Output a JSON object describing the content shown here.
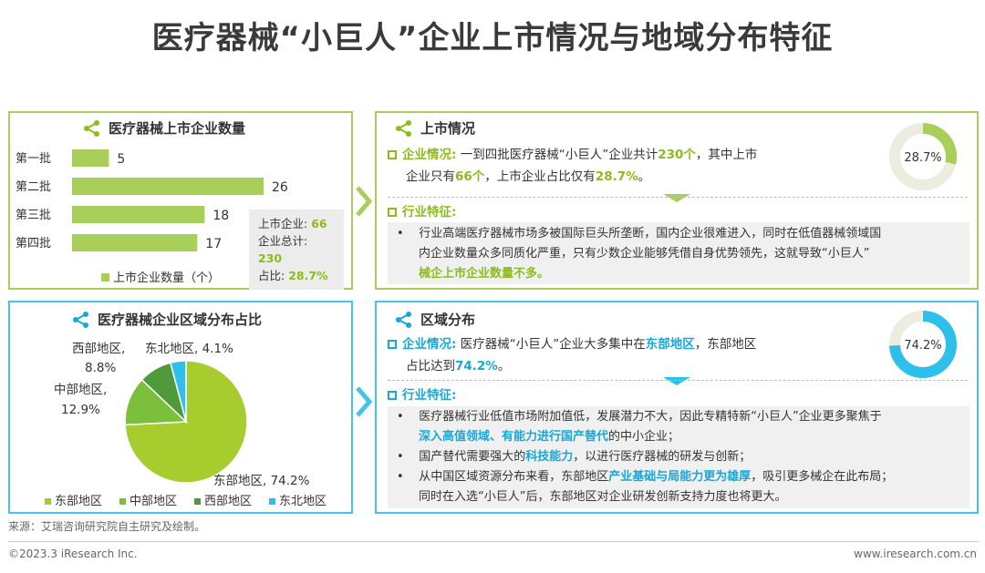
{
  "title": "医疗器械“小巨人”企业上市情况与地域分布特征",
  "panels": {
    "listed": {
      "title": "医疗器械上市企业数量",
      "summary": {
        "listed_label": "上市企业:",
        "listed_value": "66",
        "total_label": "企业总计:",
        "total_value": "230",
        "ratio_label": "占比:",
        "ratio_value": "28.7%"
      },
      "legend": "上市企业数量（个）"
    },
    "region_chart": {
      "title": "医疗器械企业区域分布占比",
      "legend": [
        "东部地区",
        "中部地区",
        "西部地区",
        "东北地区"
      ]
    },
    "listing_status": {
      "title": "上市情况",
      "donut_label": "28.7%",
      "sec1_heading": "企业情况:",
      "sec1_p1": "一到四批医疗器械“小巨人”企业共计",
      "sec1_h1": "230个",
      "sec1_p2": "，其中上市",
      "sec1_p3": "企业只有",
      "sec1_h2": "66个",
      "sec1_p4": "，上市企业占比仅有",
      "sec1_h3": "28.7%",
      "sec1_p5": "。",
      "sec2_heading": "行业特征:",
      "sec2_line1": "行业高端医疗器械市场多被国际巨头所垄断，国内企业很难进入，同时在低值器械领域国",
      "sec2_line2": "内企业数量众多同质化严重，只有少数企业能够凭借自身优势领先，这就导致“小巨人”",
      "sec2_line3": "械企上市企业数量不多。"
    },
    "region_dist": {
      "title": "区域分布",
      "donut_label": "74.2%",
      "sec1_heading": "企业情况:",
      "sec1_p1": "医疗器械“小巨人”企业大多集中在",
      "sec1_h1": "东部地区",
      "sec1_p2": "，东部地区",
      "sec1_p3": "占比达到",
      "sec1_h2": "74.2%",
      "sec1_p4": "。",
      "sec2_heading": "行业特征:",
      "b1_line1": "医疗器械行业低值市场附加值低，发展潜力不大，因此专精特新“小巨人”企业更多聚焦于",
      "b1_h": "深入高值领域、有能力进行国产替代",
      "b1_tail": "的中小企业；",
      "b2_p1": "国产替代需要强大的",
      "b2_h": "科技能力",
      "b2_p2": "，以进行医疗器械的研发与创新；",
      "b3_p1": "从中国区域资源分布来看，东部地区",
      "b3_h": "产业基础与局能力更为雄厚",
      "b3_p2": "，吸引更多械企在此布局；",
      "b3_line2": "同时在入选“小巨人”后，东部地区对企业研发创新支持力度也将更大。"
    }
  },
  "footer": {
    "source": "来源：艾瑞咨询研究院自主研究及绘制。",
    "copyright": "©2023.3 iResearch Inc.",
    "url": "www.iresearch.com.cn"
  },
  "colors": {
    "green": "#a8cf5a",
    "blue": "#45c3ea",
    "dark_green": "#6aaa3a",
    "lime": "#a6cc2e"
  },
  "chart_data": [
    {
      "type": "bar",
      "title": "医疗器械上市企业数量",
      "categories": [
        "第一批",
        "第二批",
        "第三批",
        "第四批"
      ],
      "series": [
        {
          "name": "上市企业数量（个）",
          "values": [
            5,
            26,
            18,
            17
          ]
        }
      ]
    },
    {
      "type": "pie",
      "title": "医疗器械企业区域分布占比",
      "labels": [
        "东部地区",
        "中部地区",
        "西部地区",
        "东北地区"
      ],
      "label_texts": [
        "东部地区, 74.2%",
        "中部地区,",
        "12.9%",
        "西部地区,",
        "8.8%",
        "东北地区, 4.1%"
      ],
      "values": [
        74.2,
        12.9,
        8.8,
        4.1
      ],
      "colors": [
        "#a6cc2e",
        "#7cbf3c",
        "#4f9a3a",
        "#2ec0ea"
      ]
    }
  ]
}
